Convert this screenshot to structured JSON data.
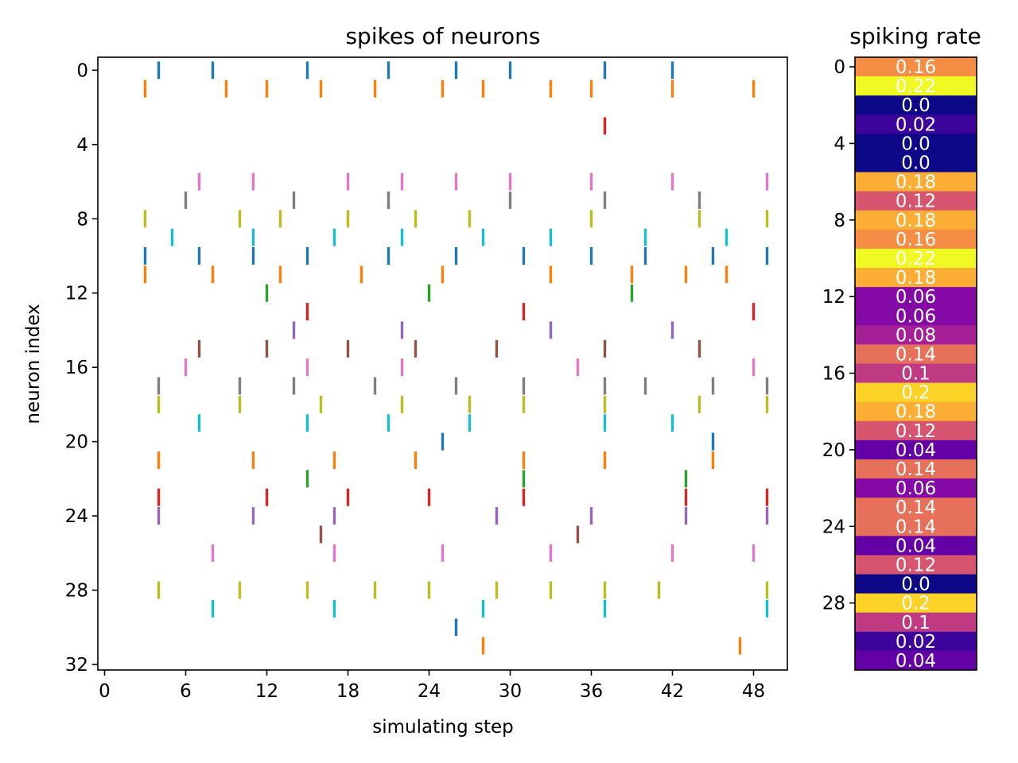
{
  "chart_data": [
    {
      "type": "scatter",
      "marker": "vertical tick",
      "title": "spikes of neurons",
      "xlabel": "simulating step",
      "ylabel": "neuron index",
      "xlim": [
        -0.5,
        50.5
      ],
      "ylim": [
        32.3,
        -0.7
      ],
      "y_inverted": true,
      "xticks": [
        0,
        6,
        12,
        18,
        24,
        30,
        36,
        42,
        48
      ],
      "yticks": [
        0,
        4,
        8,
        12,
        16,
        20,
        24,
        28,
        32
      ],
      "grid": false,
      "legend": "none",
      "color_cycle": [
        "#1f77b4",
        "#ff7f0e",
        "#2ca02c",
        "#d62728",
        "#9467bd",
        "#8c564b",
        "#e377c2",
        "#7f7f7f",
        "#bcbd22",
        "#17becf"
      ],
      "spikes": [
        {
          "neuron": 0,
          "steps": [
            4,
            8,
            15,
            21,
            26,
            30,
            37,
            42
          ]
        },
        {
          "neuron": 1,
          "steps": [
            3,
            9,
            12,
            16,
            20,
            25,
            28,
            33,
            36,
            42,
            48
          ]
        },
        {
          "neuron": 2,
          "steps": []
        },
        {
          "neuron": 3,
          "steps": [
            37
          ]
        },
        {
          "neuron": 4,
          "steps": []
        },
        {
          "neuron": 5,
          "steps": []
        },
        {
          "neuron": 6,
          "steps": [
            7,
            11,
            18,
            22,
            26,
            30,
            36,
            42,
            49
          ]
        },
        {
          "neuron": 7,
          "steps": [
            6,
            14,
            21,
            30,
            37,
            44
          ]
        },
        {
          "neuron": 8,
          "steps": [
            3,
            10,
            13,
            18,
            23,
            27,
            36,
            44,
            49
          ]
        },
        {
          "neuron": 9,
          "steps": [
            5,
            11,
            17,
            22,
            28,
            33,
            40,
            46
          ]
        },
        {
          "neuron": 10,
          "steps": [
            3,
            7,
            11,
            15,
            21,
            26,
            31,
            36,
            40,
            45,
            49
          ]
        },
        {
          "neuron": 11,
          "steps": [
            3,
            8,
            13,
            19,
            25,
            33,
            39,
            43,
            46
          ]
        },
        {
          "neuron": 12,
          "steps": [
            12,
            24,
            39
          ]
        },
        {
          "neuron": 13,
          "steps": [
            15,
            31,
            48
          ]
        },
        {
          "neuron": 14,
          "steps": [
            14,
            22,
            33,
            42
          ]
        },
        {
          "neuron": 15,
          "steps": [
            7,
            12,
            18,
            23,
            29,
            37,
            44
          ]
        },
        {
          "neuron": 16,
          "steps": [
            6,
            15,
            22,
            35,
            48
          ]
        },
        {
          "neuron": 17,
          "steps": [
            4,
            10,
            14,
            20,
            26,
            31,
            37,
            40,
            45,
            49
          ]
        },
        {
          "neuron": 18,
          "steps": [
            4,
            10,
            16,
            22,
            27,
            31,
            37,
            44,
            49
          ]
        },
        {
          "neuron": 19,
          "steps": [
            7,
            15,
            21,
            27,
            37,
            42
          ]
        },
        {
          "neuron": 20,
          "steps": [
            25,
            45
          ]
        },
        {
          "neuron": 21,
          "steps": [
            4,
            11,
            17,
            23,
            31,
            37,
            45
          ]
        },
        {
          "neuron": 22,
          "steps": [
            15,
            31,
            43
          ]
        },
        {
          "neuron": 23,
          "steps": [
            4,
            12,
            18,
            24,
            31,
            43,
            49
          ]
        },
        {
          "neuron": 24,
          "steps": [
            4,
            11,
            17,
            29,
            36,
            43,
            49
          ]
        },
        {
          "neuron": 25,
          "steps": [
            16,
            35
          ]
        },
        {
          "neuron": 26,
          "steps": [
            8,
            17,
            25,
            33,
            42,
            48
          ]
        },
        {
          "neuron": 27,
          "steps": []
        },
        {
          "neuron": 28,
          "steps": [
            4,
            10,
            15,
            20,
            24,
            29,
            33,
            37,
            41,
            49
          ]
        },
        {
          "neuron": 29,
          "steps": [
            8,
            17,
            28,
            37,
            49
          ]
        },
        {
          "neuron": 30,
          "steps": [
            26
          ]
        },
        {
          "neuron": 31,
          "steps": [
            28,
            47
          ]
        }
      ]
    },
    {
      "type": "heatmap",
      "title": "spiking rate",
      "colormap": "plasma",
      "vmin": 0.0,
      "vmax": 0.22,
      "yticks": [
        0,
        4,
        8,
        12,
        16,
        20,
        24,
        28
      ],
      "values": [
        0.16,
        0.22,
        0.0,
        0.02,
        0.0,
        0.0,
        0.18,
        0.12,
        0.18,
        0.16,
        0.22,
        0.18,
        0.06,
        0.06,
        0.08,
        0.14,
        0.1,
        0.2,
        0.18,
        0.12,
        0.04,
        0.14,
        0.06,
        0.14,
        0.14,
        0.04,
        0.12,
        0.0,
        0.2,
        0.1,
        0.02,
        0.04
      ],
      "labels": [
        "0.16",
        "0.22",
        "0.0",
        "0.02",
        "0.0",
        "0.0",
        "0.18",
        "0.12",
        "0.18",
        "0.16",
        "0.22",
        "0.18",
        "0.06",
        "0.06",
        "0.08",
        "0.14",
        "0.1",
        "0.2",
        "0.18",
        "0.12",
        "0.04",
        "0.14",
        "0.06",
        "0.14",
        "0.14",
        "0.04",
        "0.12",
        "0.0",
        "0.2",
        "0.1",
        "0.02",
        "0.04"
      ]
    }
  ]
}
